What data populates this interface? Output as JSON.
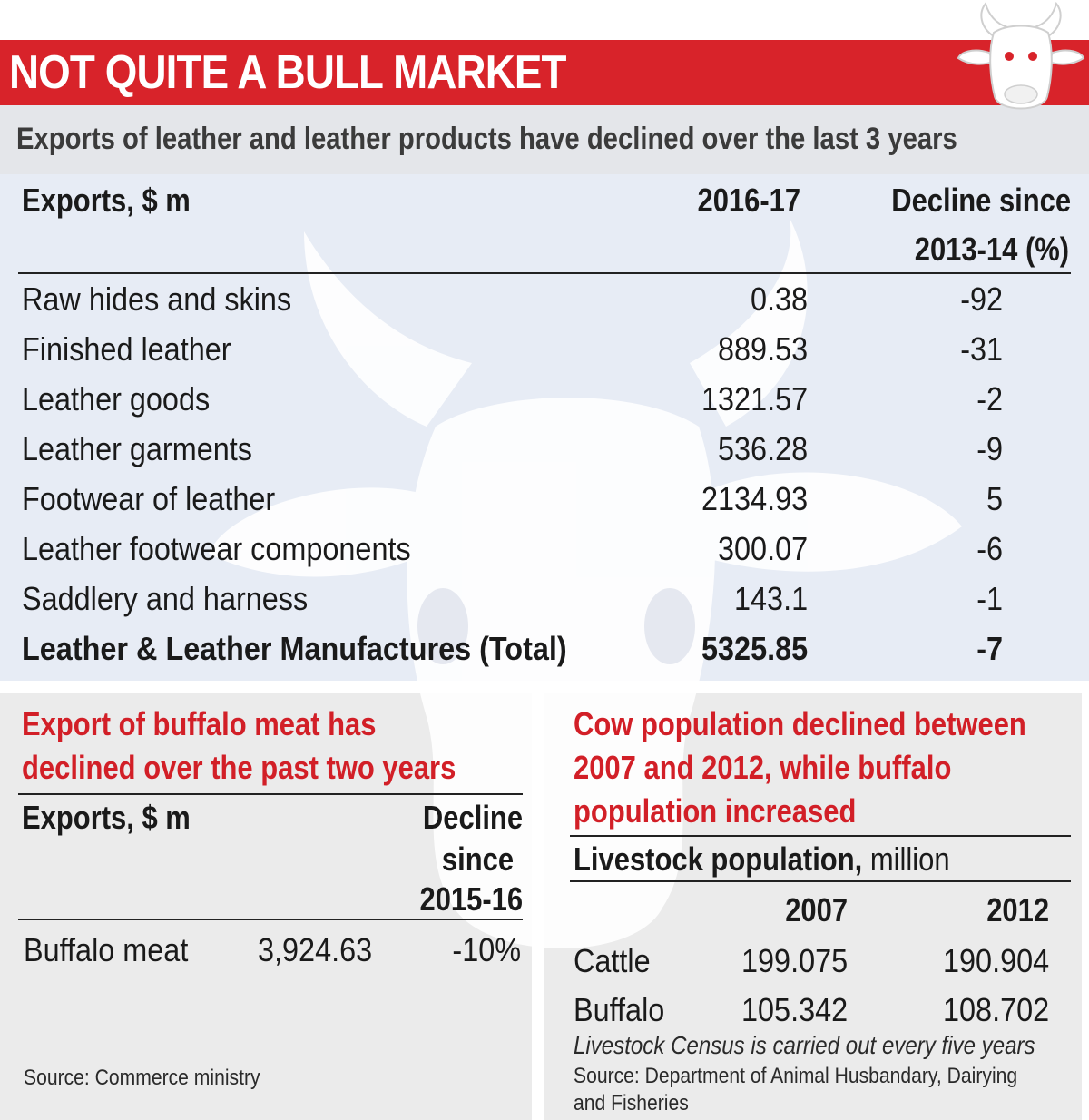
{
  "header": {
    "title": "NOT QUITE A BULL MARKET",
    "subtitle": "Exports of leather and leather products have declined over the last 3 years"
  },
  "colors": {
    "accent_red": "#d8232a",
    "panel_blue": "#e7ecf5",
    "panel_grey": "#ebebeb",
    "text": "#1a1a1a"
  },
  "icons": {
    "logo": "cow-head-icon",
    "watermark": "cow-head-watermark"
  },
  "chart_data": [
    {
      "type": "table",
      "columns": [
        "Exports, $ m",
        "2016-17",
        "Decline since 2013-14 (%)"
      ],
      "col_label_unit": "Exports, $ m",
      "col_year": "2016-17",
      "col_decline_l1": "Decline since",
      "col_decline_l2": "2013-14 (%)",
      "rows": [
        {
          "category": "Raw hides and skins",
          "value_2016_17": "0.38",
          "decline_pct": "-92"
        },
        {
          "category": "Finished leather",
          "value_2016_17": "889.53",
          "decline_pct": "-31"
        },
        {
          "category": "Leather goods",
          "value_2016_17": "1321.57",
          "decline_pct": "-2"
        },
        {
          "category": "Leather garments",
          "value_2016_17": "536.28",
          "decline_pct": "-9"
        },
        {
          "category": "Footwear of leather",
          "value_2016_17": "2134.93",
          "decline_pct": "5"
        },
        {
          "category": "Leather footwear components",
          "value_2016_17": "300.07",
          "decline_pct": "-6"
        },
        {
          "category": "Saddlery and harness",
          "value_2016_17": "143.1",
          "decline_pct": "-1"
        }
      ],
      "total": {
        "category": "Leather & Leather Manufactures (Total)",
        "value_2016_17": "5325.85",
        "decline_pct": "-7"
      }
    },
    {
      "type": "table",
      "title_l1": "Export of buffalo meat has",
      "title_l2": "declined over the past two years",
      "col_label_unit": "Exports, $ m",
      "col_decline_l1": "Decline",
      "col_decline_l2": "since",
      "col_decline_l3": "2015-16",
      "rows": [
        {
          "category": "Buffalo meat",
          "value": "3,924.63",
          "decline": "-10%"
        }
      ],
      "source": "Source: Commerce ministry"
    },
    {
      "type": "table",
      "title_l1": "Cow population declined between",
      "title_l2": "2007 and 2012, while buffalo",
      "title_l3": "population increased",
      "col_label_bold": "Livestock population,",
      "col_label_unit": "million",
      "years": [
        "2007",
        "2012"
      ],
      "rows": [
        {
          "category": "Cattle",
          "values": [
            "199.075",
            "190.904"
          ]
        },
        {
          "category": "Buffalo",
          "values": [
            "105.342",
            "108.702"
          ]
        }
      ],
      "note": "Livestock Census is carried out every five years",
      "source_l1": "Source: Department of Animal Husbandary, Dairying",
      "source_l2": "and Fisheries"
    }
  ]
}
